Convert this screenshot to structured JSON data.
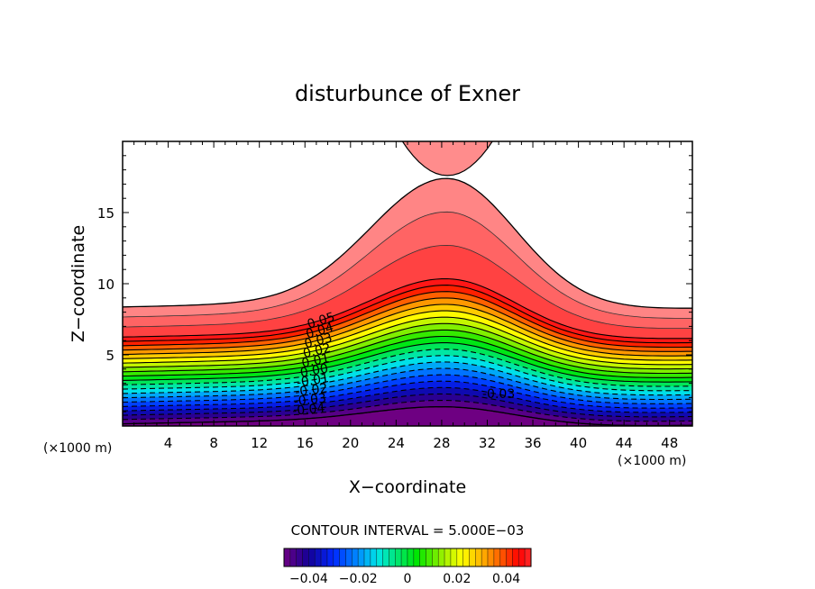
{
  "chart_data": {
    "type": "heatmap",
    "subtype": "filled-contour",
    "title": "disturbunce of Exner",
    "xlabel": "X−coordinate",
    "ylabel": "Z−coordinate",
    "x_unit_left": "(×1000 m)",
    "x_unit_right": "(×1000 m)",
    "xlim": [
      0,
      50
    ],
    "ylim": [
      0,
      20
    ],
    "xticks": [
      4,
      8,
      12,
      16,
      20,
      24,
      28,
      32,
      36,
      40,
      44,
      48
    ],
    "yticks": [
      5,
      10,
      15
    ],
    "contour_interval_label": "CONTOUR INTERVAL = 5.000E−03",
    "contour_interval": 0.005,
    "levels": [
      -0.05,
      -0.045,
      -0.04,
      -0.035,
      -0.03,
      -0.025,
      -0.02,
      -0.015,
      -0.01,
      -0.005,
      0.0,
      0.005,
      0.01,
      0.015,
      0.02,
      0.025,
      0.03,
      0.035,
      0.04,
      0.045,
      0.05,
      0.055,
      0.06
    ],
    "contour_labels": [
      "0.05",
      "0.04",
      "0.03",
      "0.02",
      "0.01",
      "0.00",
      "-0.01",
      "-0.02",
      "-0.03",
      "-0.04",
      "-0.03"
    ],
    "field_description_values": {
      "mountain_peak_x": 28.5,
      "region_above_top_contour": "white",
      "top_patch_center_x": 28.5
    },
    "colorbar": {
      "range": [
        -0.05,
        0.05
      ],
      "tick_labels": [
        "−0.04",
        "−0.02",
        "0",
        "0.02",
        "0.04"
      ],
      "tick_values": [
        -0.04,
        -0.02,
        0,
        0.02,
        0.04
      ]
    },
    "colormap": "rainbow (purple → blue → cyan → green → yellow → orange → red → pink)"
  }
}
